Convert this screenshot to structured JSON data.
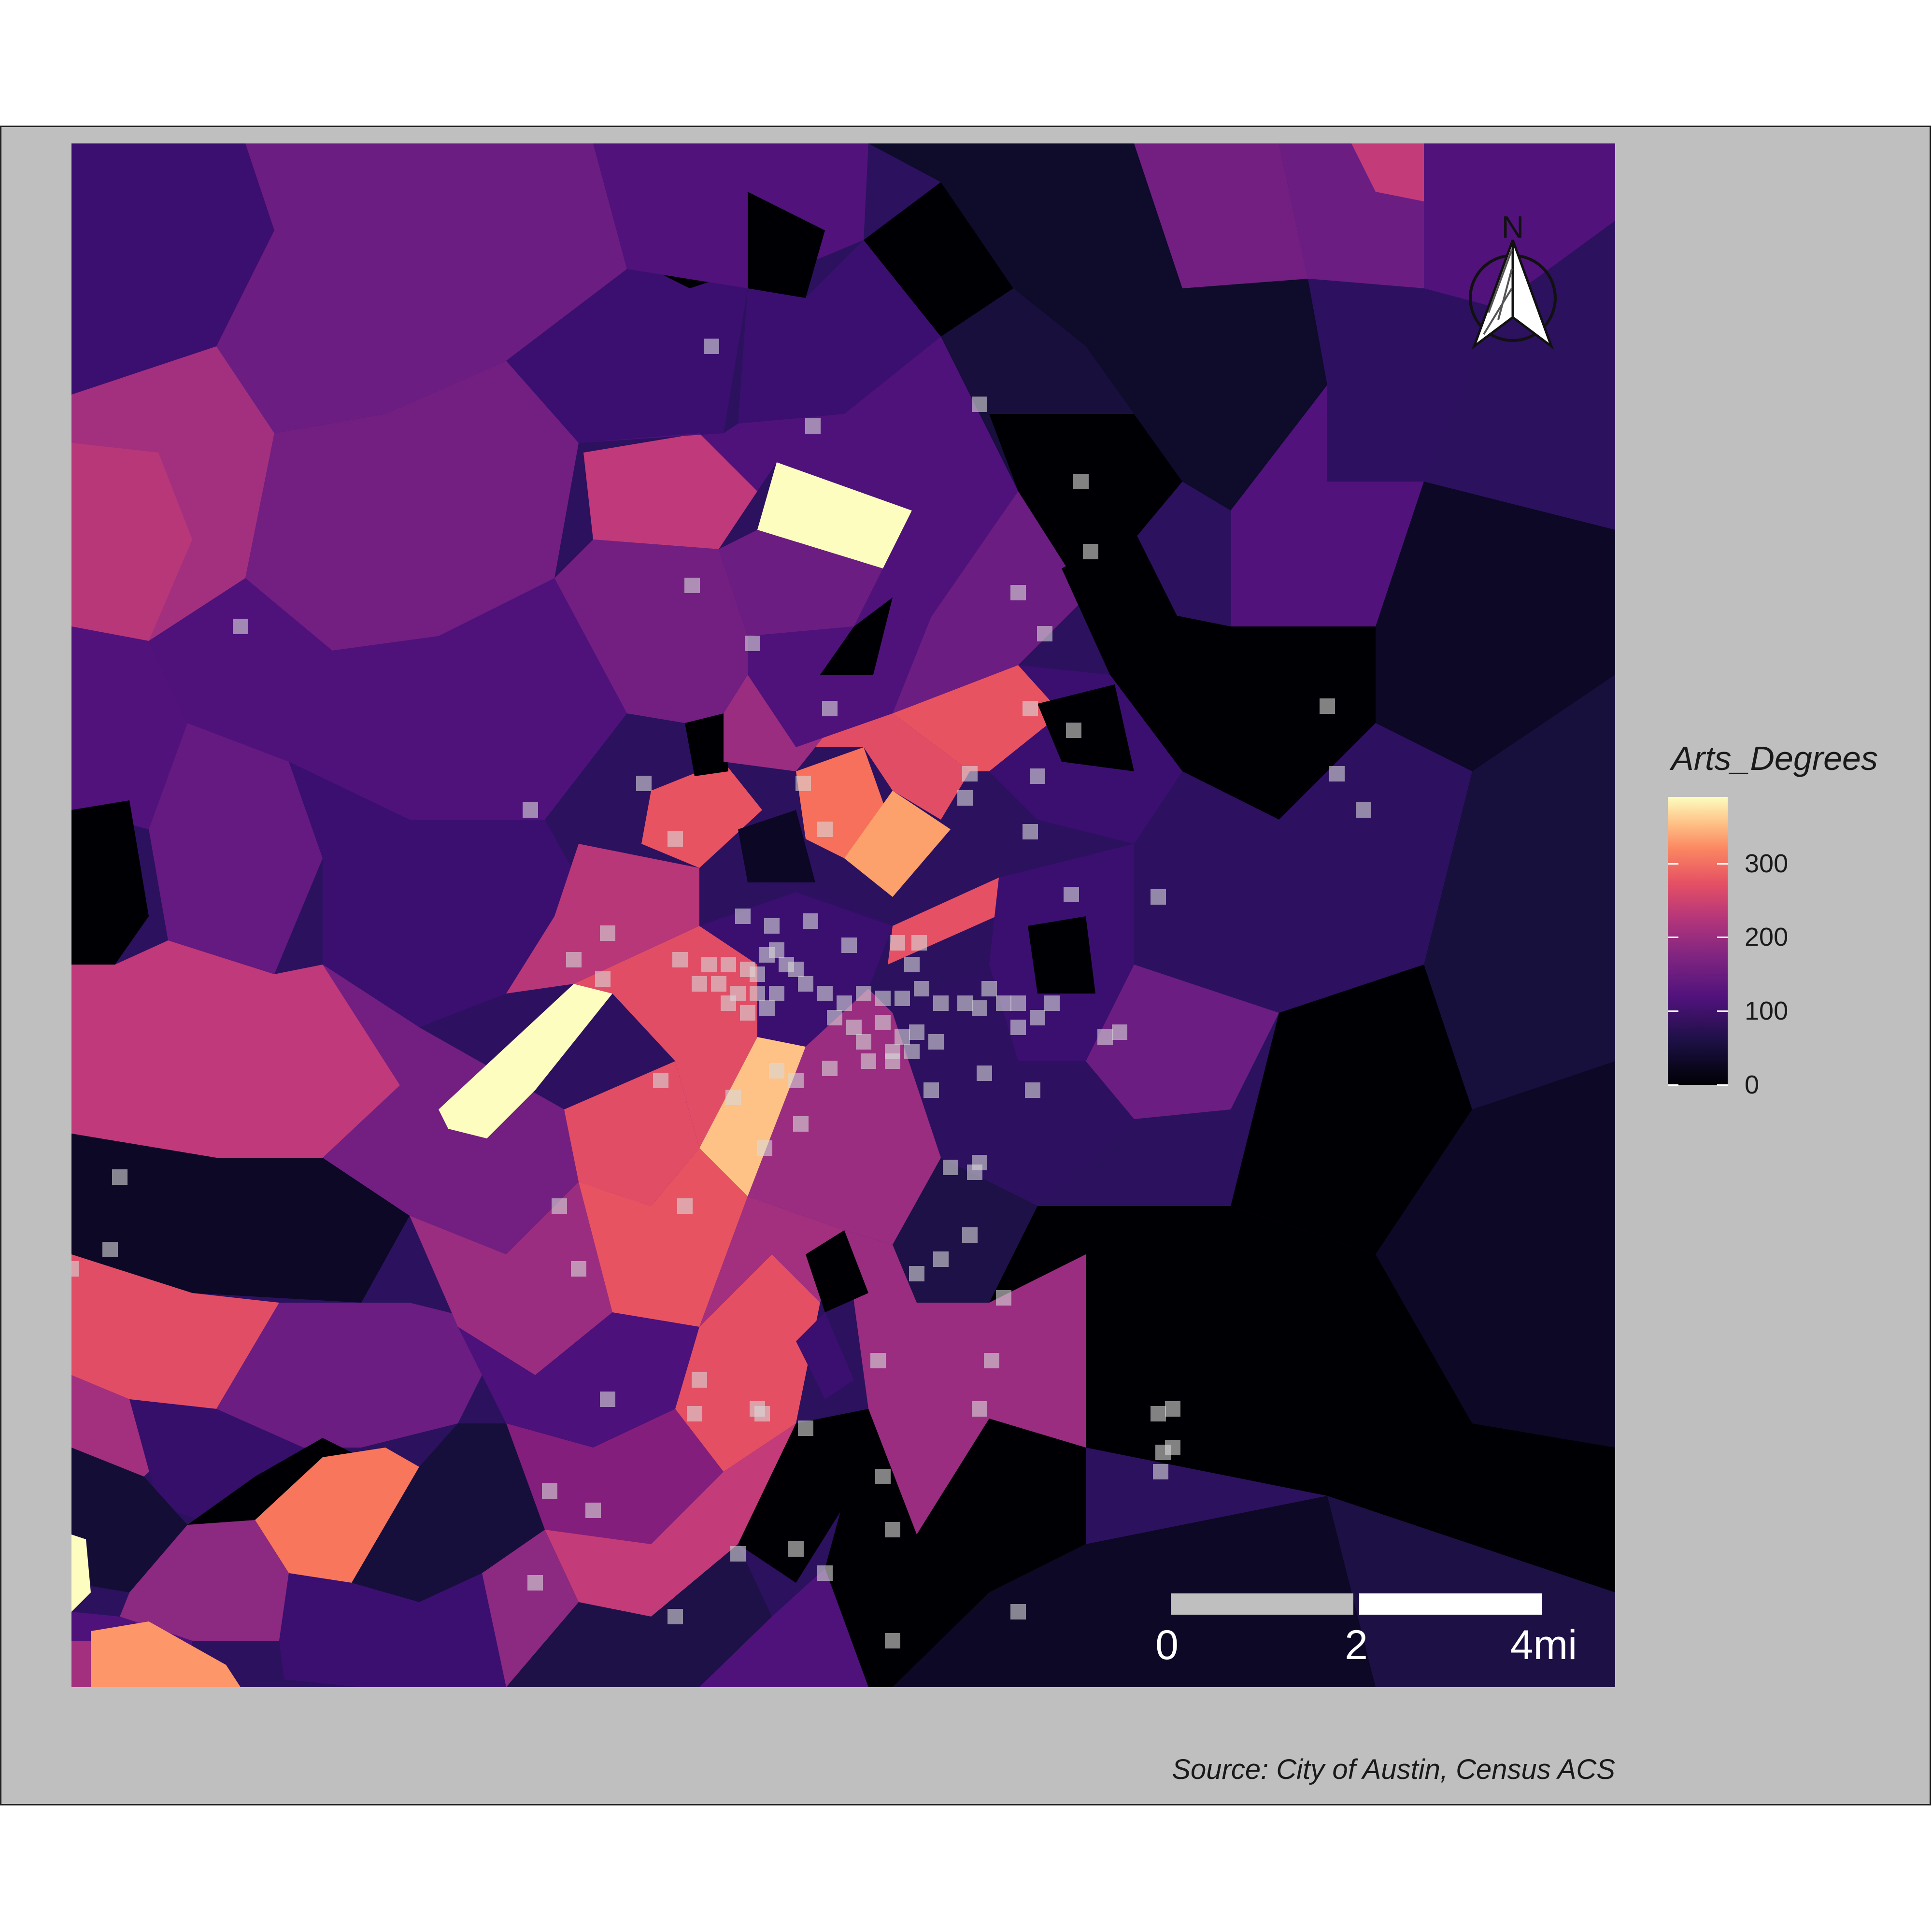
{
  "map": {
    "legend_title": "Arts_Degrees",
    "legend_ticks": [
      {
        "value": 0,
        "label": "0"
      },
      {
        "value": 100,
        "label": "100"
      },
      {
        "value": 200,
        "label": "200"
      },
      {
        "value": 300,
        "label": "300"
      }
    ],
    "legend_range": [
      0,
      390
    ],
    "colormap": "magma",
    "north_arrow_label": "N",
    "scale_bar": {
      "labels": [
        "0",
        "2",
        "4mi"
      ]
    },
    "source": "Source: City of Austin, Census ACS"
  },
  "colors": {
    "panel_background": "#bfbfbf",
    "point_color": "#d9d9d9",
    "scale_bar_gray": "#bfbfbf",
    "scale_bar_white": "#ffffff"
  }
}
